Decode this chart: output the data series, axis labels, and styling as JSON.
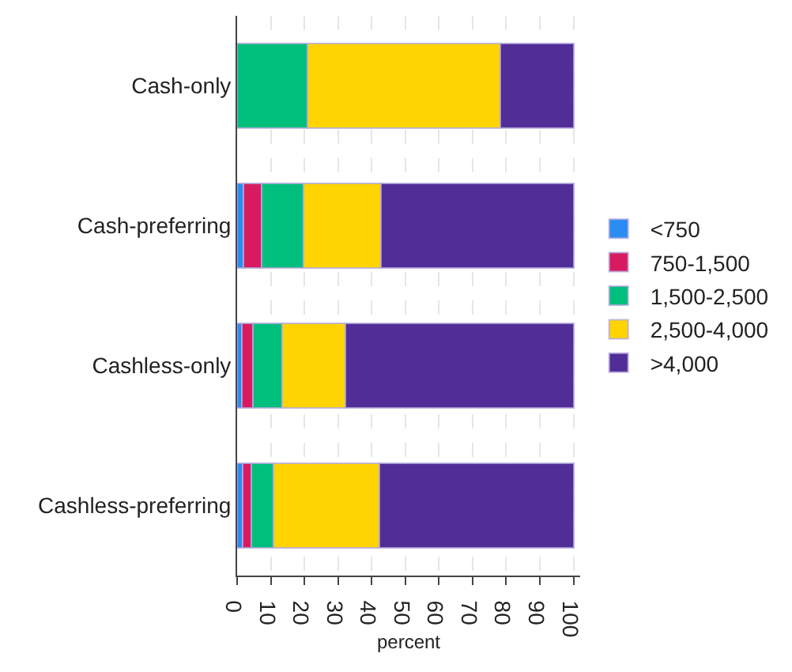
{
  "chart_data": {
    "type": "bar",
    "orientation": "horizontal",
    "stacked": true,
    "xlabel": "percent",
    "categories": [
      "Cash-only",
      "Cash-preferring",
      "Cashless-only",
      "Cashless-preferring"
    ],
    "series": [
      {
        "name": "<750",
        "color": "#2b8cf2",
        "values": [
          0,
          1.8,
          1.5,
          1.6
        ]
      },
      {
        "name": "750-1,500",
        "color": "#d81b60",
        "values": [
          0,
          5.5,
          3.3,
          2.6
        ]
      },
      {
        "name": "1,500-2,500",
        "color": "#00bf7d",
        "values": [
          21,
          12.4,
          8.5,
          6.5
        ]
      },
      {
        "name": "2,500-4,000",
        "color": "#ffd400",
        "values": [
          57.3,
          23.1,
          18.8,
          31.7
        ]
      },
      {
        "name": ">4,000",
        "color": "#512d98",
        "values": [
          21.7,
          57.3,
          67.9,
          57.6
        ]
      }
    ],
    "xlim": [
      0,
      102
    ],
    "xticks": [
      0,
      10,
      20,
      30,
      40,
      50,
      60,
      70,
      80,
      90,
      100
    ],
    "grid": "x",
    "legend": "right"
  }
}
